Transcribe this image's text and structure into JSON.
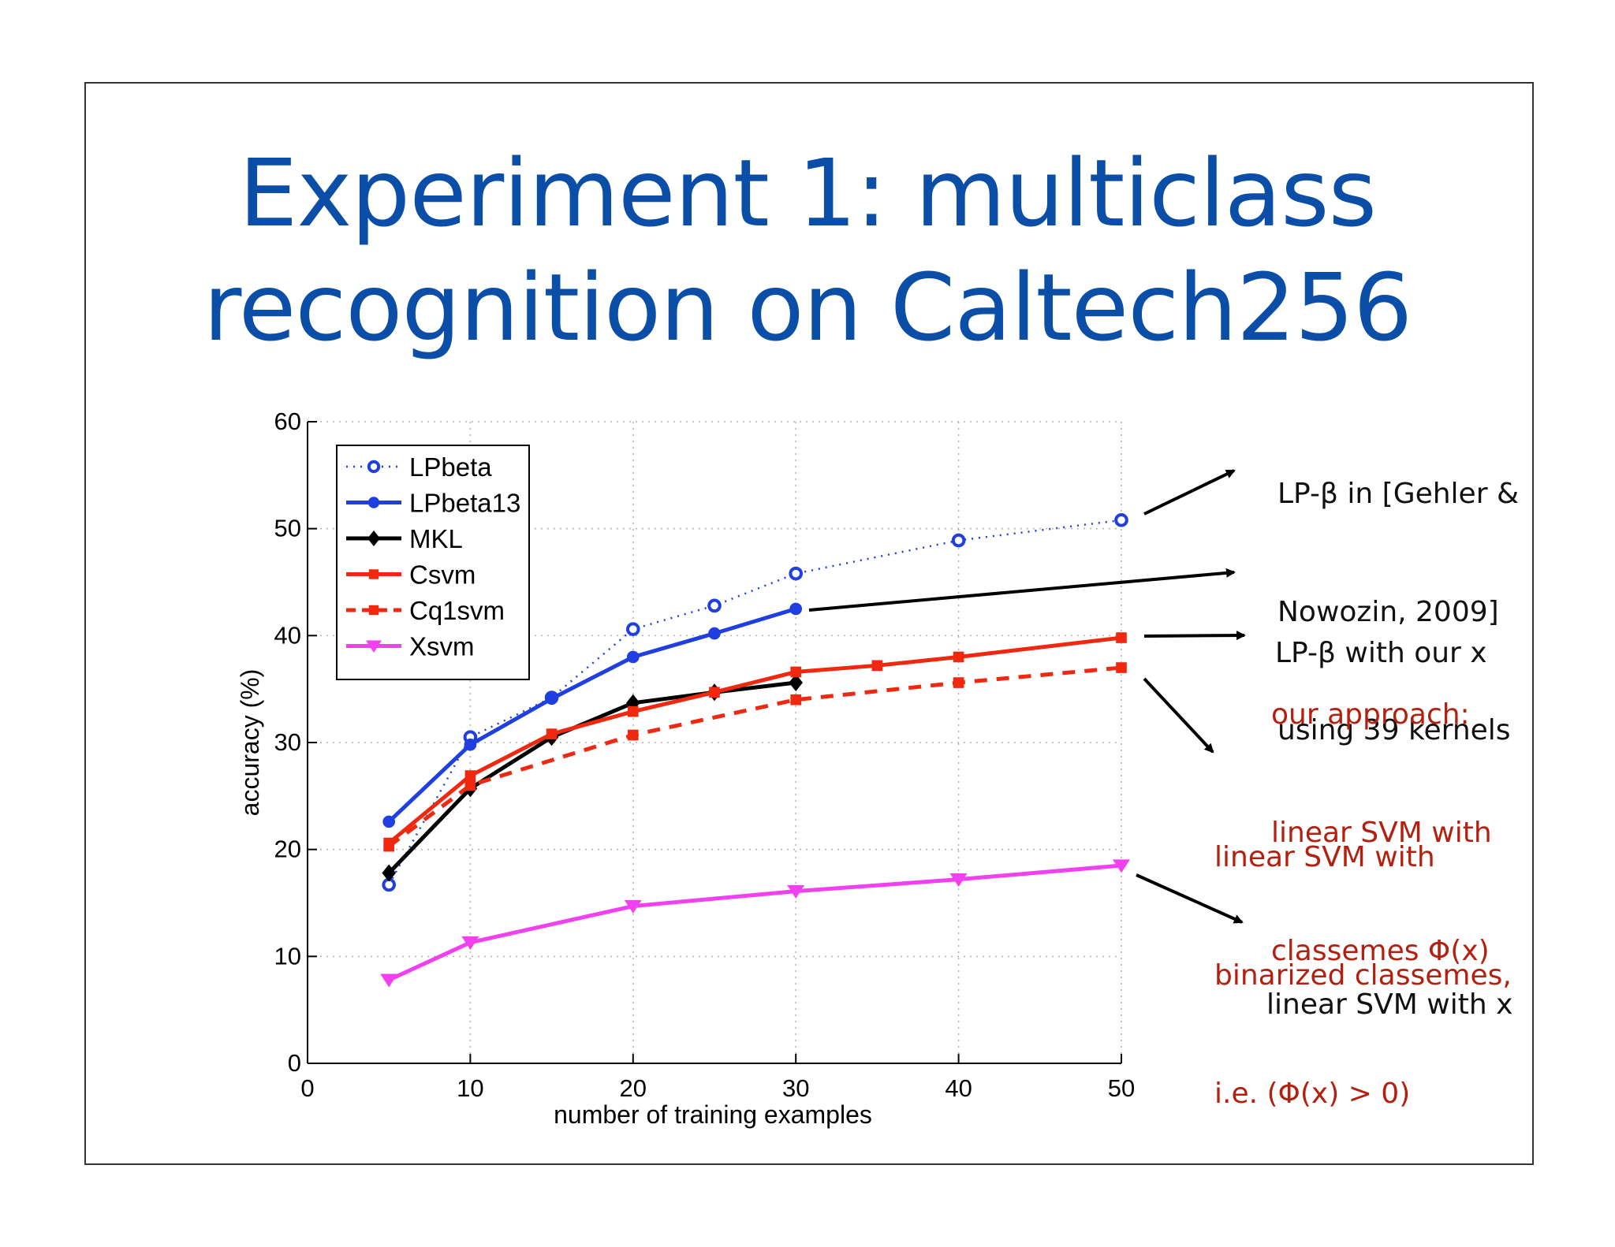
{
  "slide": {
    "title_line1": "Experiment 1: multiclass",
    "title_line2": "recognition on Caltech256"
  },
  "chart_data": {
    "type": "line",
    "xlabel": "number of training examples",
    "ylabel": "accuracy (%)",
    "xlim": [
      0,
      50
    ],
    "ylim": [
      0,
      60
    ],
    "xticks": [
      0,
      10,
      20,
      30,
      40,
      50
    ],
    "yticks": [
      0,
      10,
      20,
      30,
      40,
      50,
      60
    ],
    "grid": true,
    "legend_position": "top-left",
    "series": [
      {
        "name": "LPbeta",
        "color": "#1f3fe0",
        "style": "dotted",
        "marker": "circle-open",
        "x": [
          5,
          10,
          15,
          20,
          25,
          30,
          40,
          50
        ],
        "y": [
          16.7,
          30.5,
          34.2,
          40.6,
          42.8,
          45.8,
          48.9,
          50.8
        ]
      },
      {
        "name": "LPbeta13",
        "color": "#1f3fe0",
        "style": "solid",
        "marker": "circle",
        "x": [
          5,
          10,
          15,
          20,
          25,
          30
        ],
        "y": [
          22.6,
          29.8,
          34.1,
          38.0,
          40.2,
          42.5
        ]
      },
      {
        "name": "MKL",
        "color": "#000000",
        "style": "solid",
        "marker": "diamond",
        "x": [
          5,
          10,
          15,
          20,
          25,
          30
        ],
        "y": [
          17.8,
          25.7,
          30.5,
          33.7,
          34.7,
          35.6
        ]
      },
      {
        "name": "Csvm",
        "color": "#f02810",
        "style": "solid",
        "marker": "square",
        "x": [
          5,
          10,
          15,
          20,
          25,
          30,
          35,
          40,
          50
        ],
        "y": [
          20.6,
          26.9,
          30.8,
          32.9,
          34.7,
          36.6,
          37.2,
          38.0,
          39.8
        ]
      },
      {
        "name": "Cq1svm",
        "color": "#f02810",
        "style": "dashed",
        "marker": "square",
        "x": [
          5,
          10,
          20,
          30,
          40,
          50
        ],
        "y": [
          20.3,
          26.0,
          30.7,
          34.0,
          35.6,
          37.0
        ]
      },
      {
        "name": "Xsvm",
        "color": "#f040f0",
        "style": "solid",
        "marker": "triangle-down",
        "x": [
          5,
          10,
          20,
          30,
          40,
          50
        ],
        "y": [
          7.8,
          11.3,
          14.7,
          16.1,
          17.2,
          18.5
        ]
      }
    ]
  },
  "annotations": {
    "lpbeta": [
      "LP-β in [Gehler &",
      "Nowozin, 2009]",
      "using 39 kernels"
    ],
    "lpbeta13": [
      "LP-β with our x"
    ],
    "ours": [
      "our approach:",
      "linear SVM with",
      "classemes Φ(x)"
    ],
    "binarized": [
      "linear SVM with",
      "binarized classemes,",
      "i.e. (Φ(x) > 0)"
    ],
    "xsvm": [
      "linear SVM with x"
    ],
    "colors": {
      "black": "#111111",
      "red": "#b3200f"
    }
  }
}
